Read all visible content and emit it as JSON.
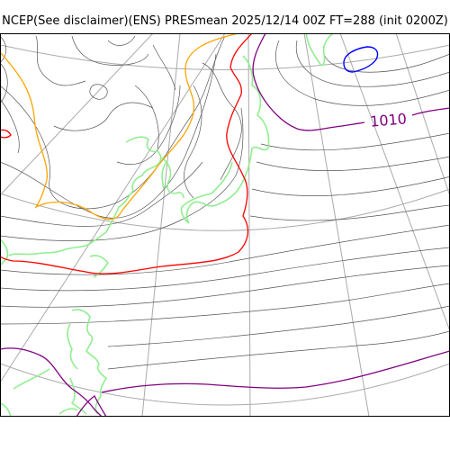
{
  "title": "NCEP(See disclaimer)(ENS) PRESmean 2025/12/14 00Z FT=288 (init 0200Z)",
  "map": {
    "field": "PRESmean",
    "contour_labels": [
      {
        "text": "1010",
        "color": "#800080"
      }
    ],
    "colors": {
      "isobar": "#555555",
      "graticule": "#aaaaaa",
      "coastline": "#90ee90",
      "contour_1010": "#800080",
      "contour_red": "#ff0000",
      "contour_orange": "#ffa500",
      "contour_blue": "#0000ff",
      "frame": "#000000"
    }
  }
}
